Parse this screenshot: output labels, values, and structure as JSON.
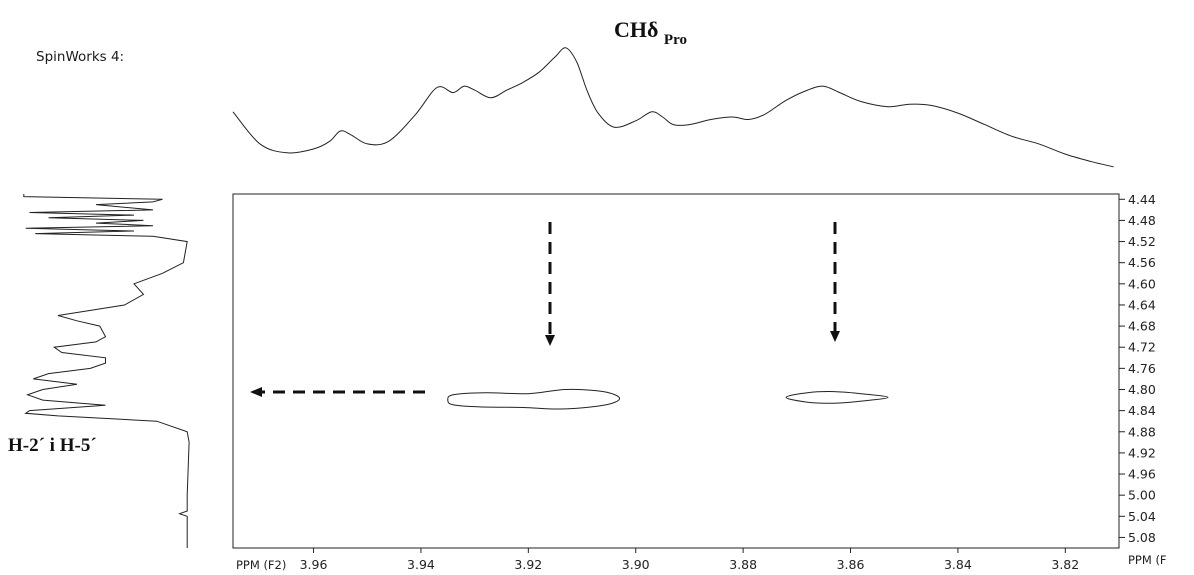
{
  "app_label": "SpinWorks 4:",
  "peak_label_top": {
    "main": "CHδ",
    "sub": "Pro"
  },
  "peak_label_left": "H-2´ i H-5´",
  "chart_data": {
    "type": "contour",
    "x_axis": {
      "label": "PPM (F2)",
      "range": [
        3.975,
        3.81
      ],
      "ticks": [
        3.96,
        3.94,
        3.92,
        3.9,
        3.88,
        3.86,
        3.84,
        3.82
      ],
      "tick_labels": [
        "3.96",
        "3.94",
        "3.92",
        "3.90",
        "3.88",
        "3.86",
        "3.84",
        "3.82"
      ]
    },
    "y_axis": {
      "label": "PPM (F",
      "range": [
        4.43,
        5.1
      ],
      "ticks": [
        4.44,
        4.48,
        4.52,
        4.56,
        4.6,
        4.64,
        4.68,
        4.72,
        4.76,
        4.8,
        4.84,
        4.88,
        4.92,
        4.96,
        5.0,
        5.04,
        5.08
      ],
      "tick_labels": [
        "4.44",
        "4.48",
        "4.52",
        "4.56",
        "4.60",
        "4.64",
        "4.68",
        "4.72",
        "4.76",
        "4.80",
        "4.84",
        "4.88",
        "4.92",
        "4.96",
        "5.00",
        "5.04",
        "5.08"
      ]
    },
    "cross_peaks": [
      {
        "f2_ppm": 3.914,
        "f1_ppm": 4.815
      },
      {
        "f2_ppm": 3.863,
        "f1_ppm": 4.815
      }
    ],
    "contours": [
      {
        "name": "cross-peak-1",
        "points": [
          [
            3.935,
            4.82
          ],
          [
            3.934,
            4.81
          ],
          [
            3.928,
            4.806
          ],
          [
            3.92,
            4.808
          ],
          [
            3.913,
            4.8
          ],
          [
            3.906,
            4.804
          ],
          [
            3.903,
            4.817
          ],
          [
            3.906,
            4.83
          ],
          [
            3.914,
            4.837
          ],
          [
            3.921,
            4.834
          ],
          [
            3.929,
            4.833
          ],
          [
            3.934,
            4.829
          ]
        ]
      },
      {
        "name": "cross-peak-2",
        "points": [
          [
            3.872,
            4.815
          ],
          [
            3.868,
            4.806
          ],
          [
            3.863,
            4.804
          ],
          [
            3.858,
            4.808
          ],
          [
            3.853,
            4.815
          ],
          [
            3.858,
            4.822
          ],
          [
            3.863,
            4.826
          ],
          [
            3.868,
            4.824
          ]
        ]
      }
    ],
    "top_projection": {
      "axis": "F2",
      "x_ppm": [
        3.975,
        3.97,
        3.965,
        3.96,
        3.957,
        3.955,
        3.953,
        3.95,
        3.946,
        3.941,
        3.937,
        3.934,
        3.932,
        3.93,
        3.927,
        3.924,
        3.921,
        3.918,
        3.915,
        3.913,
        3.911,
        3.909,
        3.907,
        3.904,
        3.9,
        3.897,
        3.895,
        3.893,
        3.89,
        3.886,
        3.882,
        3.879,
        3.876,
        3.872,
        3.868,
        3.865,
        3.862,
        3.858,
        3.853,
        3.849,
        3.845,
        3.84,
        3.835,
        3.83,
        3.825,
        3.82,
        3.815,
        3.811
      ],
      "intensity": [
        0.47,
        0.22,
        0.15,
        0.18,
        0.24,
        0.32,
        0.29,
        0.22,
        0.24,
        0.45,
        0.66,
        0.62,
        0.67,
        0.64,
        0.58,
        0.64,
        0.7,
        0.78,
        0.9,
        0.97,
        0.86,
        0.63,
        0.46,
        0.35,
        0.4,
        0.47,
        0.43,
        0.37,
        0.37,
        0.41,
        0.43,
        0.41,
        0.45,
        0.56,
        0.64,
        0.67,
        0.62,
        0.55,
        0.51,
        0.53,
        0.52,
        0.46,
        0.37,
        0.28,
        0.22,
        0.14,
        0.08,
        0.04
      ]
    },
    "left_projection": {
      "axis": "F1",
      "y_ppm": [
        4.43,
        4.435,
        4.44,
        4.445,
        4.45,
        4.46,
        4.465,
        4.47,
        4.475,
        4.48,
        4.485,
        4.49,
        4.495,
        4.5,
        4.505,
        4.51,
        4.52,
        4.54,
        4.56,
        4.58,
        4.6,
        4.62,
        4.64,
        4.66,
        4.67,
        4.68,
        4.7,
        4.71,
        4.72,
        4.73,
        4.74,
        4.75,
        4.76,
        4.77,
        4.78,
        4.79,
        4.8,
        4.81,
        4.82,
        4.83,
        4.84,
        4.845,
        4.85,
        4.86,
        4.88,
        4.9,
        5.0,
        5.03,
        5.035,
        5.04,
        5.1
      ],
      "intensity": [
        0.98,
        0.98,
        0.25,
        0.3,
        0.6,
        0.3,
        0.95,
        0.4,
        0.85,
        0.35,
        0.6,
        0.3,
        0.97,
        0.4,
        0.92,
        0.3,
        0.12,
        0.13,
        0.14,
        0.25,
        0.4,
        0.35,
        0.45,
        0.8,
        0.7,
        0.58,
        0.55,
        0.6,
        0.82,
        0.78,
        0.55,
        0.55,
        0.63,
        0.85,
        0.93,
        0.7,
        0.88,
        0.96,
        0.88,
        0.55,
        0.95,
        0.97,
        0.8,
        0.28,
        0.12,
        0.11,
        0.12,
        0.12,
        0.16,
        0.12,
        0.12
      ]
    }
  }
}
